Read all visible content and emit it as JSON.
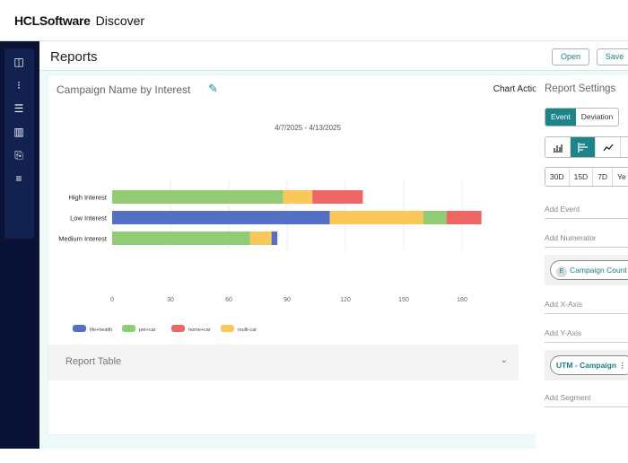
{
  "app": {
    "brand": "HCLSoftware",
    "product": "Discover"
  },
  "sidebar": {
    "icons": [
      "dashboard-icon",
      "nodes-icon",
      "search-list-icon",
      "bar-chart-icon",
      "document-export-icon",
      "sliders-icon"
    ]
  },
  "header": {
    "title": "Reports",
    "open_label": "Open",
    "save_label": "Save"
  },
  "card": {
    "title": "Campaign Name by Interest",
    "chart_actions": "Chart Actions",
    "date_range": "4/7/2025 - 4/13/2025"
  },
  "report_table": {
    "label": "Report Table"
  },
  "settings": {
    "title": "Report Settings",
    "modes": [
      "Event",
      "Deviation"
    ],
    "active_mode": "Event",
    "chart_types": [
      "column-chart-icon",
      "bar-chart-icon",
      "line-chart-icon",
      "other-chart-icon"
    ],
    "active_chart_type": "bar-chart-icon",
    "ranges": [
      "30D",
      "15D",
      "7D",
      "Ye"
    ],
    "add_event": "Add Event",
    "add_numerator": "Add Numerator",
    "event_chip": "Campaign Count",
    "event_badge": "E",
    "add_x_axis": "Add X-Axis",
    "add_y_axis": "Add Y-Axis",
    "dimension_chip": "UTM - Campaign",
    "add_segment": "Add Segment"
  },
  "chart_data": {
    "type": "bar",
    "orientation": "horizontal",
    "stacked": true,
    "categories": [
      "High Interest",
      "Low Interest",
      "Medium Interest"
    ],
    "xlim": [
      0,
      190
    ],
    "xticks": [
      0,
      30,
      60,
      90,
      120,
      150,
      180
    ],
    "grid": true,
    "legend": "bottom-left",
    "colors": {
      "life+health": "#5470c6",
      "pet+car": "#91cc75",
      "home+car": "#ee6666",
      "multi-car": "#fac858"
    },
    "legend_entries": [
      "life+health",
      "pet+car",
      "home+car",
      "multi-car"
    ],
    "rows": [
      {
        "category": "High Interest",
        "segments": [
          {
            "series": "pet+car",
            "value": 88
          },
          {
            "series": "multi-car",
            "value": 15
          },
          {
            "series": "home+car",
            "value": 26
          }
        ]
      },
      {
        "category": "Low Interest",
        "segments": [
          {
            "series": "life+health",
            "value": 112
          },
          {
            "series": "multi-car",
            "value": 48
          },
          {
            "series": "pet+car",
            "value": 12
          },
          {
            "series": "home+car",
            "value": 18
          }
        ]
      },
      {
        "category": "Medium Interest",
        "segments": [
          {
            "series": "pet+car",
            "value": 71
          },
          {
            "series": "multi-car",
            "value": 11
          },
          {
            "series": "life+health",
            "value": 3
          }
        ]
      }
    ]
  }
}
